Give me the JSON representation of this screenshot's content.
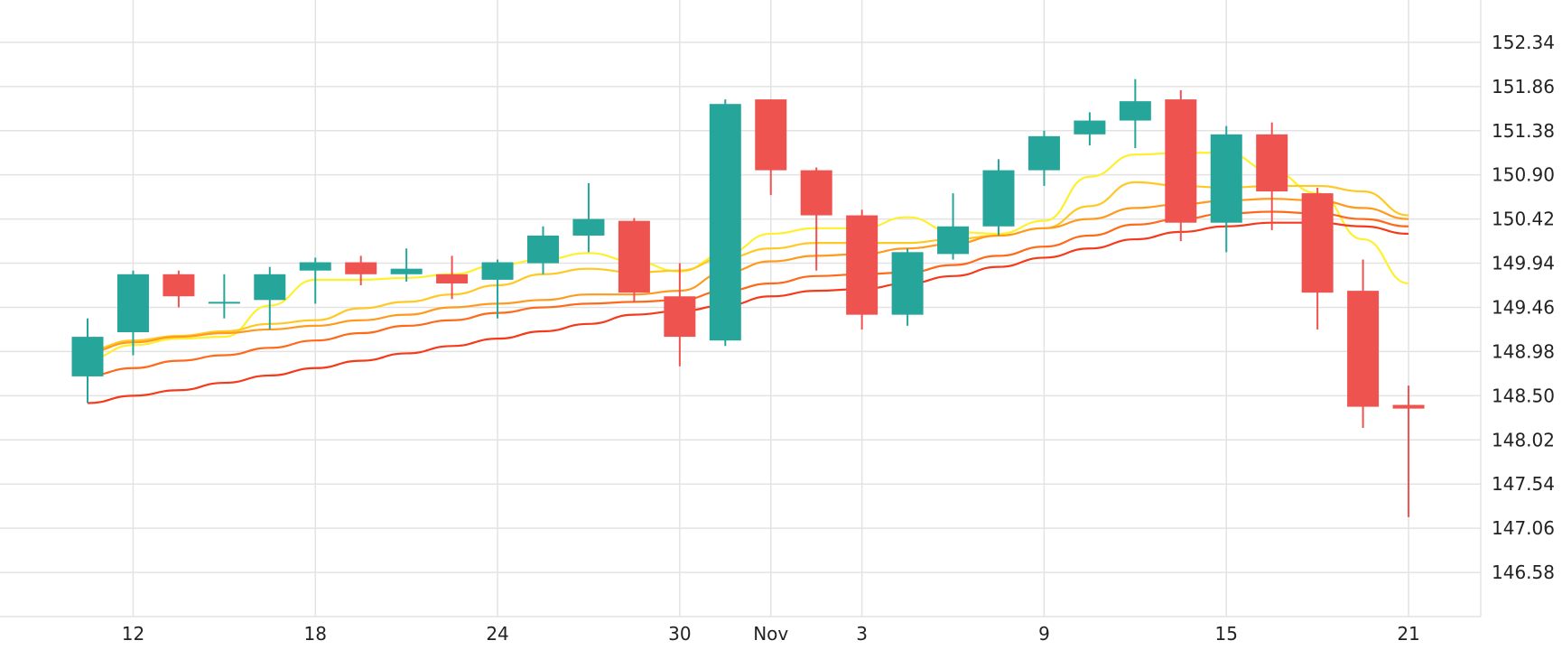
{
  "chart_data": {
    "type": "candlestick",
    "y_ticks": [
      146.58,
      147.06,
      147.54,
      148.02,
      148.5,
      148.98,
      149.46,
      149.94,
      150.42,
      150.9,
      151.38,
      151.86,
      152.34
    ],
    "y_tick_labels": [
      "146.58",
      "147.06",
      "147.54",
      "148.02",
      "148.50",
      "148.98",
      "149.46",
      "149.94",
      "150.42",
      "150.90",
      "151.38",
      "151.86",
      "152.34"
    ],
    "ylim": [
      146.1,
      152.8
    ],
    "x_ticks": [
      {
        "label": "12",
        "index": 1
      },
      {
        "label": "18",
        "index": 5
      },
      {
        "label": "24",
        "index": 9
      },
      {
        "label": "30",
        "index": 13
      },
      {
        "label": "Nov",
        "index": 15
      },
      {
        "label": "3",
        "index": 17
      },
      {
        "label": "9",
        "index": 21
      },
      {
        "label": "15",
        "index": 25
      },
      {
        "label": "21",
        "index": 29
      }
    ],
    "candles": [
      {
        "o": 148.71,
        "h": 149.34,
        "l": 148.42,
        "c": 149.14
      },
      {
        "o": 149.19,
        "h": 149.86,
        "l": 148.94,
        "c": 149.82
      },
      {
        "o": 149.82,
        "h": 149.86,
        "l": 149.46,
        "c": 149.58
      },
      {
        "o": 149.52,
        "h": 149.82,
        "l": 149.34,
        "c": 149.52
      },
      {
        "o": 149.54,
        "h": 149.9,
        "l": 149.22,
        "c": 149.82
      },
      {
        "o": 149.86,
        "h": 150.0,
        "l": 149.5,
        "c": 149.95
      },
      {
        "o": 149.95,
        "h": 150.02,
        "l": 149.7,
        "c": 149.82
      },
      {
        "o": 149.82,
        "h": 150.1,
        "l": 149.74,
        "c": 149.88
      },
      {
        "o": 149.82,
        "h": 150.02,
        "l": 149.55,
        "c": 149.72
      },
      {
        "o": 149.76,
        "h": 149.98,
        "l": 149.34,
        "c": 149.95
      },
      {
        "o": 149.94,
        "h": 150.34,
        "l": 149.82,
        "c": 150.24
      },
      {
        "o": 150.24,
        "h": 150.81,
        "l": 150.06,
        "c": 150.42
      },
      {
        "o": 150.4,
        "h": 150.43,
        "l": 149.51,
        "c": 149.62
      },
      {
        "o": 149.58,
        "h": 149.94,
        "l": 148.82,
        "c": 149.14
      },
      {
        "o": 149.1,
        "h": 151.72,
        "l": 149.04,
        "c": 151.67
      },
      {
        "o": 151.72,
        "h": 151.72,
        "l": 150.68,
        "c": 150.95
      },
      {
        "o": 150.95,
        "h": 150.98,
        "l": 149.86,
        "c": 150.46
      },
      {
        "o": 150.46,
        "h": 150.52,
        "l": 149.22,
        "c": 149.38
      },
      {
        "o": 149.38,
        "h": 150.1,
        "l": 149.26,
        "c": 150.06
      },
      {
        "o": 150.04,
        "h": 150.7,
        "l": 149.98,
        "c": 150.34
      },
      {
        "o": 150.34,
        "h": 151.07,
        "l": 150.24,
        "c": 150.95
      },
      {
        "o": 150.95,
        "h": 151.38,
        "l": 150.78,
        "c": 151.32
      },
      {
        "o": 151.34,
        "h": 151.58,
        "l": 151.22,
        "c": 151.49
      },
      {
        "o": 151.49,
        "h": 151.94,
        "l": 151.19,
        "c": 151.7
      },
      {
        "o": 151.72,
        "h": 151.82,
        "l": 150.18,
        "c": 150.38
      },
      {
        "o": 150.38,
        "h": 151.43,
        "l": 150.06,
        "c": 151.34
      },
      {
        "o": 151.34,
        "h": 151.47,
        "l": 150.3,
        "c": 150.72
      },
      {
        "o": 150.7,
        "h": 150.76,
        "l": 149.22,
        "c": 149.62
      },
      {
        "o": 149.64,
        "h": 149.98,
        "l": 148.15,
        "c": 148.38
      },
      {
        "o": 148.4,
        "h": 148.61,
        "l": 147.18,
        "c": 148.36
      }
    ],
    "moving_averages": [
      {
        "color": "#fff02f",
        "values": [
          148.9,
          149.05,
          149.12,
          149.14,
          149.48,
          149.76,
          149.76,
          149.78,
          149.82,
          149.92,
          149.98,
          150.05,
          149.96,
          149.85,
          150.04,
          150.26,
          150.32,
          150.32,
          150.44,
          150.28,
          150.26,
          150.4,
          150.88,
          151.12,
          151.14,
          151.14,
          150.94,
          150.7,
          150.2,
          149.72
        ]
      },
      {
        "color": "#ffc823",
        "values": [
          149.0,
          149.1,
          149.15,
          149.2,
          149.28,
          149.32,
          149.45,
          149.52,
          149.6,
          149.7,
          149.82,
          149.88,
          149.84,
          149.86,
          150.0,
          150.1,
          150.16,
          150.16,
          150.16,
          150.2,
          150.24,
          150.32,
          150.56,
          150.82,
          150.78,
          150.76,
          150.78,
          150.78,
          150.72,
          150.46
        ]
      },
      {
        "color": "#ff9a1e",
        "values": [
          148.98,
          149.08,
          149.14,
          149.18,
          149.22,
          149.26,
          149.32,
          149.38,
          149.46,
          149.5,
          149.54,
          149.6,
          149.6,
          149.64,
          149.84,
          149.96,
          150.02,
          150.04,
          150.1,
          150.15,
          150.24,
          150.32,
          150.42,
          150.54,
          150.58,
          150.62,
          150.64,
          150.62,
          150.54,
          150.42
        ]
      },
      {
        "color": "#ff6a1a",
        "values": [
          148.72,
          148.8,
          148.88,
          148.94,
          149.02,
          149.1,
          149.18,
          149.26,
          149.32,
          149.4,
          149.46,
          149.5,
          149.52,
          149.54,
          149.64,
          149.72,
          149.8,
          149.82,
          149.84,
          149.92,
          150.02,
          150.12,
          150.24,
          150.36,
          150.42,
          150.48,
          150.5,
          150.48,
          150.42,
          150.34
        ]
      },
      {
        "color": "#f53a1c",
        "values": [
          148.42,
          148.5,
          148.56,
          148.64,
          148.72,
          148.8,
          148.88,
          148.96,
          149.04,
          149.12,
          149.2,
          149.28,
          149.38,
          149.42,
          149.48,
          149.58,
          149.64,
          149.66,
          149.72,
          149.8,
          149.9,
          150.0,
          150.1,
          150.2,
          150.28,
          150.34,
          150.38,
          150.38,
          150.34,
          150.26
        ]
      }
    ],
    "colors": {
      "up": "#26a69a",
      "down": "#ef5350",
      "grid": "#e3e3e3",
      "text": "#222222"
    },
    "grid": true
  }
}
